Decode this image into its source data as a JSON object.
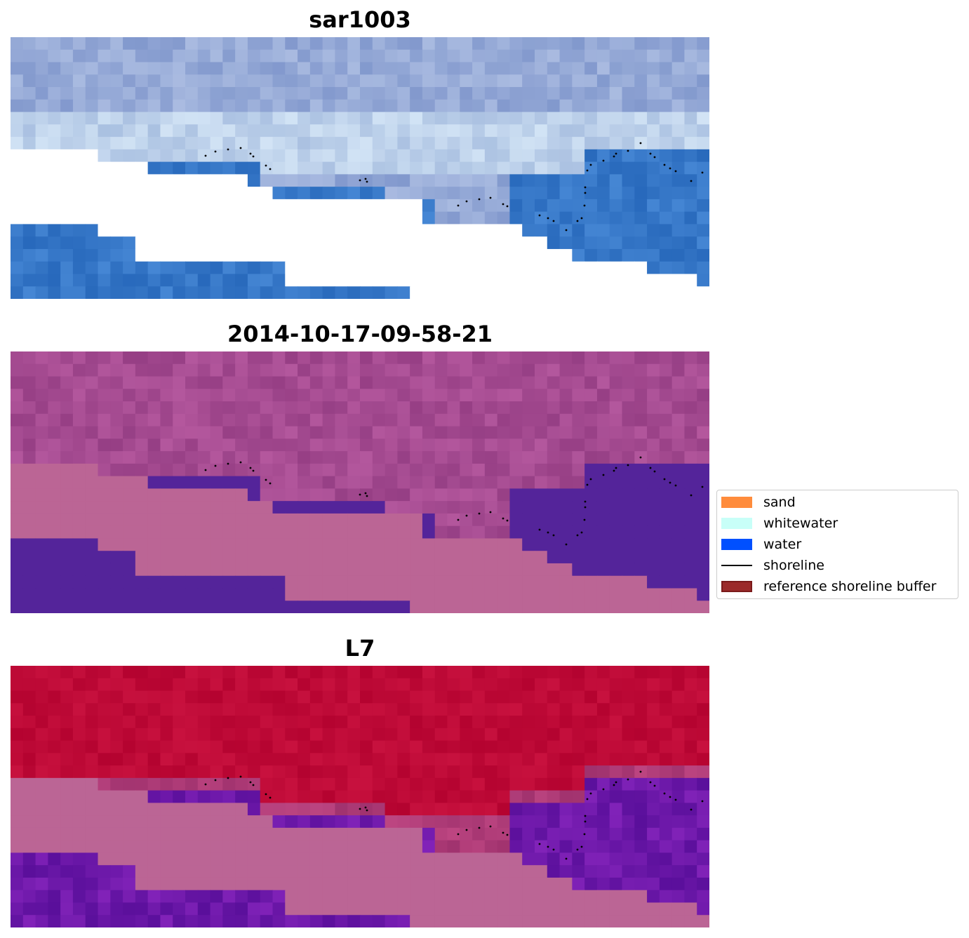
{
  "panels": [
    {
      "title": "sar1003",
      "style": "rgb"
    },
    {
      "title": "2014-10-17-09-58-21",
      "style": "classified"
    },
    {
      "title": "L7",
      "style": "index"
    }
  ],
  "legend": {
    "items": [
      {
        "label": "sand",
        "kind": "patch",
        "color": "#ff8c3c"
      },
      {
        "label": "whitewater",
        "kind": "patch",
        "color": "#c8fff8"
      },
      {
        "label": "water",
        "kind": "patch",
        "color": "#0050ff"
      },
      {
        "label": "shoreline",
        "kind": "line",
        "color": "#000000"
      },
      {
        "label": "reference shoreline buffer",
        "kind": "patch",
        "color": "#9b2a2a"
      }
    ]
  },
  "colors": {
    "mask": "#ffffff",
    "masked_fill": "#bb6595",
    "class_water": "#54249a",
    "shoreline_points": "#000000"
  }
}
